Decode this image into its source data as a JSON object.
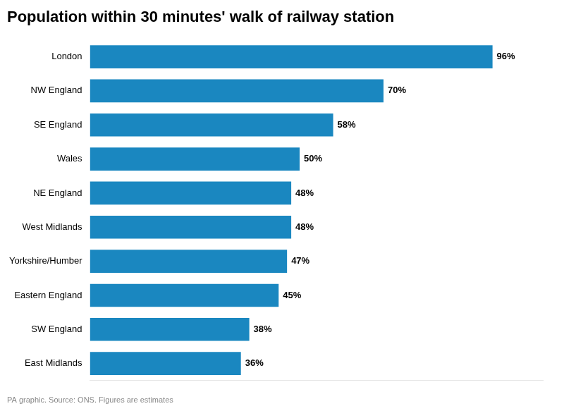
{
  "chart_data": {
    "type": "bar",
    "orientation": "horizontal",
    "title": "Population within 30 minutes' walk of railway station",
    "caption": "PA graphic. Source: ONS. Figures are estimates",
    "categories": [
      "London",
      "NW England",
      "SE England",
      "Wales",
      "NE England",
      "West Midlands",
      "Yorkshire/Humber",
      "Eastern England",
      "SW England",
      "East Midlands"
    ],
    "values": [
      96,
      70,
      58,
      50,
      48,
      48,
      47,
      45,
      38,
      36
    ],
    "value_labels": [
      "96%",
      "70%",
      "58%",
      "50%",
      "48%",
      "48%",
      "47%",
      "45%",
      "38%",
      "36%"
    ],
    "data_labels": true,
    "color": "#1a87c0",
    "xlim": [
      0,
      108
    ],
    "tick_labels": "y",
    "grid": false,
    "legend": false
  }
}
